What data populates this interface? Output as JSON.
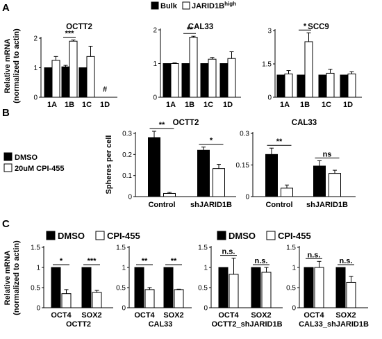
{
  "panels": {
    "A": {
      "letter": "A",
      "legend": [
        "Bulk",
        "JARID1B"
      ],
      "legend_superscript": "high"
    },
    "B": {
      "letter": "B",
      "legend": [
        "DMSO",
        "20uM CPI-455"
      ]
    },
    "C": {
      "letter": "C",
      "legend": [
        "DMSO",
        "CPI-455"
      ]
    }
  },
  "colors": {
    "filled": "#000000",
    "open": "#ffffff"
  },
  "chart_data": [
    {
      "id": "A-OCTT2",
      "panel": "A",
      "type": "bar",
      "title": "OCTT2",
      "ylabel": "Relative mRNA|(normalized to actin)",
      "ylim": [
        0,
        2
      ],
      "yticks": [
        0,
        1,
        2
      ],
      "ytick_labels": [
        "0",
        "1",
        "2"
      ],
      "categories": [
        "1A",
        "1B",
        "1C",
        "1D"
      ],
      "series": [
        {
          "name": "Bulk",
          "fill": "filled",
          "values": [
            1.0,
            1.03,
            1.0,
            null
          ],
          "errors": [
            0,
            0.05,
            0,
            null
          ]
        },
        {
          "name": "JARID1B",
          "fill": "open",
          "values": [
            1.25,
            1.9,
            1.38,
            null
          ],
          "errors": [
            0.13,
            0.04,
            0.35,
            null
          ]
        }
      ],
      "annotations": [
        {
          "text": "***",
          "category": 1
        },
        {
          "text": "#",
          "category": 3,
          "no_line": true
        }
      ]
    },
    {
      "id": "A-CAL33",
      "panel": "A",
      "type": "bar",
      "title": "CAL33",
      "ylim": [
        0,
        2
      ],
      "yticks": [
        0,
        1,
        2
      ],
      "ytick_labels": [
        "0",
        "1",
        "2"
      ],
      "categories": [
        "1A",
        "1B",
        "1C",
        "1D"
      ],
      "series": [
        {
          "name": "Bulk",
          "fill": "filled",
          "values": [
            1.0,
            1.0,
            1.0,
            1.0
          ],
          "errors": [
            0,
            0,
            0,
            0
          ]
        },
        {
          "name": "JARID1B",
          "fill": "open",
          "values": [
            1.0,
            1.78,
            1.13,
            1.15
          ],
          "errors": [
            0.02,
            0.03,
            0.05,
            0.2
          ]
        }
      ],
      "annotations": [
        {
          "text": "**",
          "category": 1
        }
      ]
    },
    {
      "id": "A-SCC9",
      "panel": "A",
      "type": "bar",
      "title": "SCC9",
      "ylim": [
        0,
        3
      ],
      "yticks": [
        0,
        1.5,
        3
      ],
      "ytick_labels": [
        "0",
        "1.5",
        "3"
      ],
      "categories": [
        "1A",
        "1B",
        "1C",
        "1D"
      ],
      "series": [
        {
          "name": "Bulk",
          "fill": "filled",
          "values": [
            1.0,
            1.0,
            1.0,
            1.0
          ],
          "errors": [
            0,
            0,
            0,
            0
          ]
        },
        {
          "name": "JARID1B",
          "fill": "open",
          "values": [
            1.05,
            2.5,
            1.08,
            1.05
          ],
          "errors": [
            0.15,
            0.4,
            0.18,
            0.1
          ]
        }
      ],
      "annotations": [
        {
          "text": "*",
          "category": 1
        }
      ]
    },
    {
      "id": "B-OCTT2",
      "panel": "B",
      "type": "bar",
      "title": "OCTT2",
      "ylabel": "Spheres per cell",
      "ylim": [
        0,
        0.3
      ],
      "yticks": [
        0,
        0.1,
        0.2,
        0.3
      ],
      "ytick_labels": [
        "0",
        "0.1",
        "0.2",
        "0.3"
      ],
      "categories": [
        "Control",
        "shJARID1B"
      ],
      "series": [
        {
          "name": "DMSO",
          "fill": "filled",
          "values": [
            0.28,
            0.22
          ],
          "errors": [
            0.03,
            0.015
          ]
        },
        {
          "name": "20uM CPI-455",
          "fill": "open",
          "values": [
            0.015,
            0.133
          ],
          "errors": [
            0.005,
            0.02
          ]
        }
      ],
      "annotations": [
        {
          "text": "**",
          "category": 0
        },
        {
          "text": "*",
          "category": 1
        }
      ]
    },
    {
      "id": "B-CAL33",
      "panel": "B",
      "type": "bar",
      "title": "CAL33",
      "ylim": [
        0,
        0.3
      ],
      "yticks": [
        0,
        0.15,
        0.3
      ],
      "ytick_labels": [
        "0",
        "0.15",
        "0.3"
      ],
      "categories": [
        "Control",
        "shJARID1B"
      ],
      "series": [
        {
          "name": "DMSO",
          "fill": "filled",
          "values": [
            0.2,
            0.145
          ],
          "errors": [
            0.03,
            0.025
          ]
        },
        {
          "name": "20uM CPI-455",
          "fill": "open",
          "values": [
            0.04,
            0.11
          ],
          "errors": [
            0.015,
            0.015
          ]
        }
      ],
      "annotations": [
        {
          "text": "**",
          "category": 0
        },
        {
          "text": "ns",
          "category": 1
        }
      ]
    },
    {
      "id": "C-OCTT2",
      "panel": "C",
      "type": "bar",
      "group_label": "OCTT2",
      "ylabel": "Relative mRNA|(normalized to actin)",
      "ylim": [
        0,
        1.5
      ],
      "yticks": [
        0,
        0.5,
        1,
        1.5
      ],
      "ytick_labels": [
        "0",
        "0.5",
        "1",
        "1.5"
      ],
      "categories": [
        "OCT4",
        "SOX2"
      ],
      "series": [
        {
          "name": "DMSO",
          "fill": "filled",
          "values": [
            1.0,
            1.0
          ],
          "errors": [
            0,
            0
          ]
        },
        {
          "name": "CPI-455",
          "fill": "open",
          "values": [
            0.35,
            0.38
          ],
          "errors": [
            0.1,
            0.05
          ]
        }
      ],
      "annotations": [
        {
          "text": "*",
          "category": 0
        },
        {
          "text": "***",
          "category": 1
        }
      ]
    },
    {
      "id": "C-CAL33",
      "panel": "C",
      "type": "bar",
      "group_label": "CAL33",
      "ylim": [
        0,
        1.5
      ],
      "yticks": [
        0,
        0.5,
        1,
        1.5
      ],
      "ytick_labels": [
        "0",
        "0.5",
        "1",
        "1.5"
      ],
      "categories": [
        "OCT4",
        "SOX2"
      ],
      "series": [
        {
          "name": "DMSO",
          "fill": "filled",
          "values": [
            1.0,
            1.0
          ],
          "errors": [
            0,
            0
          ]
        },
        {
          "name": "CPI-455",
          "fill": "open",
          "values": [
            0.45,
            0.45
          ],
          "errors": [
            0.05,
            0.01
          ]
        }
      ],
      "annotations": [
        {
          "text": "**",
          "category": 0
        },
        {
          "text": "**",
          "category": 1
        }
      ]
    },
    {
      "id": "C-OCTT2-sh",
      "panel": "C",
      "type": "bar",
      "group_label": "OCTT2_shJARID1B",
      "ylim": [
        0,
        1.5
      ],
      "yticks": [
        0,
        0.5,
        1,
        1.5
      ],
      "ytick_labels": [
        "0",
        "0.5",
        "1",
        "1.5"
      ],
      "categories": [
        "OCT4",
        "SOX2"
      ],
      "series": [
        {
          "name": "DMSO",
          "fill": "filled",
          "values": [
            1.0,
            1.0
          ],
          "errors": [
            0,
            0
          ]
        },
        {
          "name": "CPI-455",
          "fill": "open",
          "values": [
            0.83,
            0.88
          ],
          "errors": [
            0.4,
            0.12
          ]
        }
      ],
      "annotations": [
        {
          "text": "n.s.",
          "category": 0
        },
        {
          "text": "n.s.",
          "category": 1
        }
      ]
    },
    {
      "id": "C-CAL33-sh",
      "panel": "C",
      "type": "bar",
      "group_label": "CAL33_shJARID1B",
      "ylim": [
        0,
        1.5
      ],
      "yticks": [
        0,
        0.5,
        1,
        1.5
      ],
      "ytick_labels": [
        "0",
        "0.5",
        "1",
        "1.5"
      ],
      "categories": [
        "OCT4",
        "SOX2"
      ],
      "series": [
        {
          "name": "DMSO",
          "fill": "filled",
          "values": [
            1.0,
            1.0
          ],
          "errors": [
            0,
            0
          ]
        },
        {
          "name": "CPI-455",
          "fill": "open",
          "values": [
            1.0,
            0.63
          ],
          "errors": [
            0.15,
            0.15
          ]
        }
      ],
      "annotations": [
        {
          "text": "n.s.",
          "category": 0
        },
        {
          "text": "n.s.",
          "category": 1
        }
      ]
    }
  ]
}
